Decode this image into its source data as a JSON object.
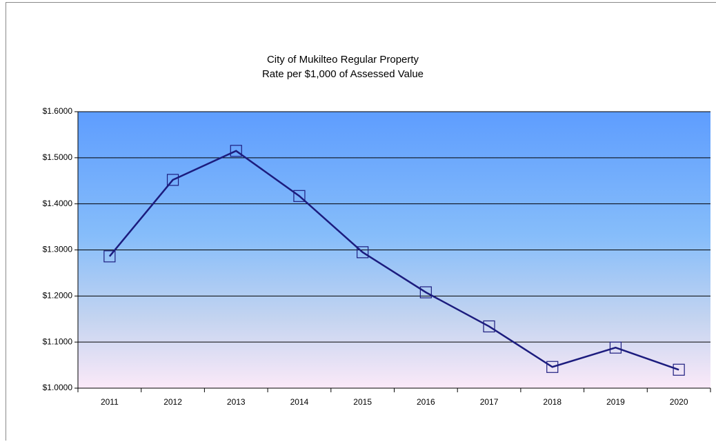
{
  "chart_data": {
    "type": "line",
    "title": [
      "City of Mukilteo Regular Property",
      "Rate per $1,000 of Assessed Value"
    ],
    "categories": [
      "2011",
      "2012",
      "2013",
      "2014",
      "2015",
      "2016",
      "2017",
      "2018",
      "2019",
      "2020"
    ],
    "values": [
      1.286,
      1.452,
      1.515,
      1.417,
      1.295,
      1.208,
      1.134,
      1.046,
      1.088,
      1.04
    ],
    "color": "#1c1c7e",
    "ylim": [
      1.0,
      1.6
    ],
    "yticks": [
      {
        "value": 1.0,
        "label": "$1.0000"
      },
      {
        "value": 1.1,
        "label": "$1.1000"
      },
      {
        "value": 1.2,
        "label": "$1.2000"
      },
      {
        "value": 1.3,
        "label": "$1.3000"
      },
      {
        "value": 1.4,
        "label": "$1.4000"
      },
      {
        "value": 1.5,
        "label": "$1.5000"
      },
      {
        "value": 1.6,
        "label": "$1.6000"
      }
    ],
    "grid": true,
    "marker": "square"
  }
}
